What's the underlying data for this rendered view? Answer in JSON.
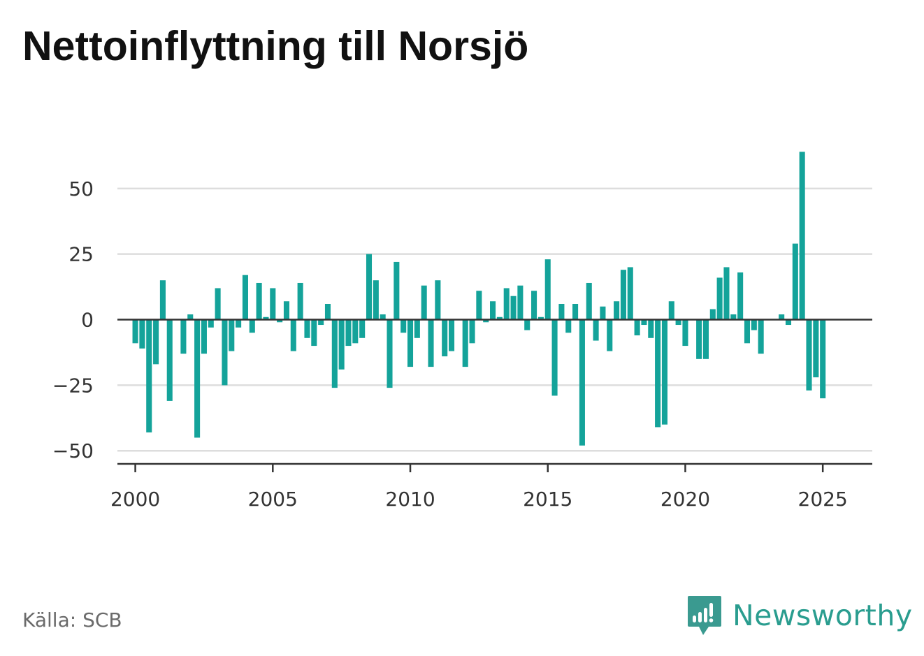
{
  "title": "Nettoinflyttning till Norsjö",
  "source": "Källa: SCB",
  "brand": {
    "name": "Newsworthy",
    "icon": "newsworthy-logo-icon",
    "color": "#3a9a90"
  },
  "colors": {
    "bar": "#14a39a",
    "grid": "#dddddd",
    "zero_line": "#333333",
    "axis": "#333333",
    "text": "#333333"
  },
  "chart_data": {
    "type": "bar",
    "title": "Nettoinflyttning till Norsjö",
    "xlabel": "",
    "ylabel": "",
    "grid": "horizontal",
    "xlim": [
      1999.35,
      2026.8
    ],
    "ylim": [
      -55,
      67
    ],
    "yticks": [
      {
        "value": 50,
        "label": "50"
      },
      {
        "value": 25,
        "label": "25"
      },
      {
        "value": 0,
        "label": "0"
      },
      {
        "value": -25,
        "label": "−25"
      },
      {
        "value": -50,
        "label": "−50"
      }
    ],
    "xticks": [
      {
        "value": 2000,
        "label": "2000"
      },
      {
        "value": 2005,
        "label": "2005"
      },
      {
        "value": 2010,
        "label": "2010"
      },
      {
        "value": 2015,
        "label": "2015"
      },
      {
        "value": 2020,
        "label": "2020"
      },
      {
        "value": 2025,
        "label": "2025"
      }
    ],
    "start_year": 2000,
    "periods_per_year": 4,
    "values": [
      -9,
      -11,
      -43,
      -17,
      15,
      -31,
      0,
      -13,
      2,
      -45,
      -13,
      -3,
      12,
      -25,
      -12,
      -3,
      17,
      -5,
      14,
      1,
      12,
      -1,
      7,
      -12,
      14,
      -7,
      -10,
      -2,
      6,
      -26,
      -19,
      -10,
      -9,
      -7,
      25,
      15,
      2,
      -26,
      22,
      -5,
      -18,
      -7,
      13,
      -18,
      15,
      -14,
      -12,
      0,
      -18,
      -9,
      11,
      -1,
      7,
      1,
      12,
      9,
      13,
      -4,
      11,
      1,
      23,
      -29,
      6,
      -5,
      6,
      -48,
      14,
      -8,
      5,
      -12,
      7,
      19,
      20,
      -6,
      -2,
      -7,
      -41,
      -40,
      7,
      -2,
      -10,
      0,
      -15,
      -15,
      4,
      16,
      20,
      2,
      18,
      -9,
      -4,
      -13,
      0,
      0,
      2,
      -2,
      29,
      64,
      -27,
      -22,
      -30
    ]
  }
}
